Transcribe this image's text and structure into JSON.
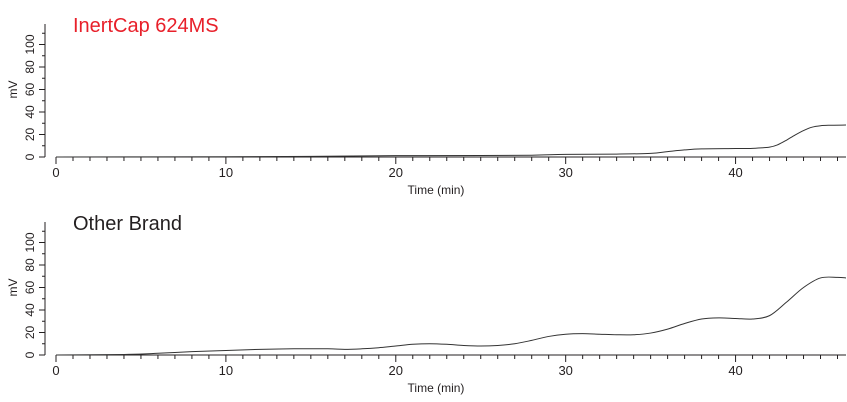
{
  "chart_data": [
    {
      "type": "line",
      "title": "InertCap 624MS",
      "title_color": "#e8202a",
      "xlabel": "Time (min)",
      "ylabel": "mV",
      "xlim": [
        0,
        46.5
      ],
      "ylim": [
        0,
        120
      ],
      "x_ticks": [
        0,
        10,
        20,
        30,
        40
      ],
      "y_ticks": [
        0,
        20,
        40,
        60,
        80,
        100
      ],
      "line_color": "#333333",
      "grid": false,
      "series": [
        {
          "x": [
            0,
            10,
            15,
            20,
            25,
            28,
            30,
            33,
            35,
            36,
            37,
            38,
            40,
            41,
            42,
            42.5,
            43,
            43.5,
            44,
            44.5,
            45,
            45.5,
            46.5
          ],
          "y": [
            0,
            0.2,
            0.6,
            1.2,
            1.3,
            1.6,
            2.3,
            2.6,
            3.2,
            4.8,
            6.3,
            7.2,
            7.5,
            7.7,
            8.8,
            11,
            15,
            19.5,
            23.5,
            26.5,
            27.8,
            28.2,
            28.4
          ]
        }
      ]
    },
    {
      "type": "line",
      "title": "Other Brand",
      "title_color": "#231f20",
      "xlabel": "Time (min)",
      "ylabel": "mV",
      "xlim": [
        0,
        46.5
      ],
      "ylim": [
        0,
        120
      ],
      "x_ticks": [
        0,
        10,
        20,
        30,
        40
      ],
      "y_ticks": [
        0,
        20,
        40,
        60,
        80,
        100
      ],
      "line_color": "#333333",
      "grid": false,
      "series": [
        {
          "x": [
            0,
            4,
            6,
            8,
            10,
            12,
            14,
            16,
            17,
            18,
            19,
            20,
            21,
            22,
            23,
            24,
            25,
            26,
            27,
            28,
            29,
            30,
            31,
            32,
            33,
            34,
            35,
            36,
            37,
            38,
            39,
            40,
            41,
            42,
            43,
            44,
            45,
            46,
            46.5
          ],
          "y": [
            0,
            0.5,
            1.5,
            3,
            4,
            5,
            5.5,
            5.5,
            5,
            5.5,
            6.5,
            8,
            9.5,
            10,
            9.5,
            8.5,
            8,
            8.5,
            10,
            13,
            16.5,
            18.5,
            19,
            18.5,
            18,
            18,
            19.5,
            23,
            28,
            32,
            33,
            32.5,
            32,
            35,
            47,
            60,
            68.5,
            69,
            68.5
          ]
        }
      ]
    }
  ]
}
